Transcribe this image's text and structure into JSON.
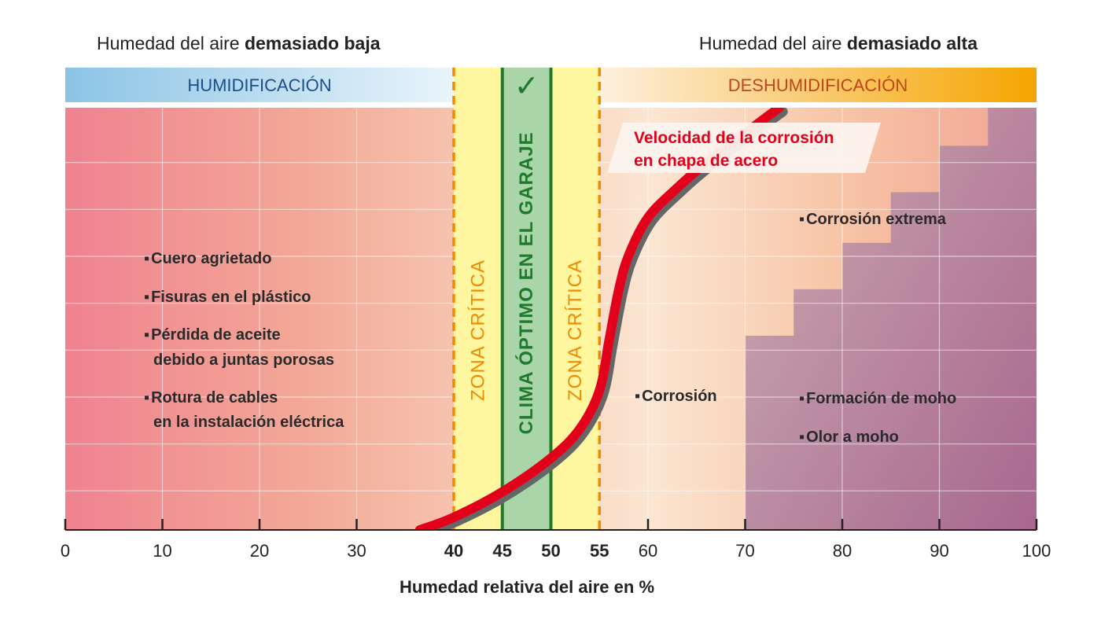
{
  "header": {
    "left_prefix": "Humedad del aire ",
    "left_bold": "demasiado baja",
    "right_prefix": "Humedad del aire ",
    "right_bold": "demasiado alta"
  },
  "bands": {
    "humidification": "HUMIDIFICACIÓN",
    "dehumidification": "DESHUMIDIFICACIÓN",
    "check_symbol": "✓"
  },
  "zones": {
    "critical_left": "ZONA CRÍTICA",
    "optimal": "CLIMA ÓPTIMO EN EL GARAJE",
    "critical_right": "ZONA CRÍTICA"
  },
  "colors": {
    "humid_band": "#8cc4e6",
    "dehumid_band": "#f5a500",
    "critical_zone": "#fff6a0",
    "optimal_zone": "#a9d5a9",
    "optimal_line": "#1f7a2e",
    "dashed_line": "#f08a00",
    "curve": "#e3001b",
    "curve_shadow": "#666666",
    "mold_area": "#a87aa0",
    "humid_label": "#1b4f86",
    "dehumid_label": "#c0461a"
  },
  "annotations": {
    "left": [
      {
        "lines": [
          "Cuero agrietado"
        ]
      },
      {
        "lines": [
          "Fisuras en el plástico"
        ]
      },
      {
        "lines": [
          "Pérdida de aceite",
          "debido a juntas porosas"
        ]
      },
      {
        "lines": [
          "Rotura de cables",
          "en la instalación eléctrica"
        ]
      }
    ],
    "corrosion": "Corrosión",
    "extreme": "Corrosión extrema",
    "mold_formation": "Formación de moho",
    "mold_smell": "Olor a moho"
  },
  "chart_data": {
    "type": "line",
    "title": "",
    "xlabel": "Humedad relativa del aire en %",
    "ylabel": "",
    "xlim": [
      0,
      100
    ],
    "grid": true,
    "x_ticks": [
      "0",
      "10",
      "20",
      "30",
      "40",
      "45",
      "50",
      "55",
      "60",
      "70",
      "80",
      "90",
      "100"
    ],
    "x_tick_values": [
      0,
      10,
      20,
      30,
      40,
      45,
      50,
      55,
      60,
      70,
      80,
      90,
      100
    ],
    "highlighted_ticks": {
      "40": "#f08a00",
      "45": "#1f7a2e",
      "50": "#1f7a2e",
      "55": "#f08a00"
    },
    "regions": [
      {
        "name": "ZONA CRÍTICA",
        "x": [
          40,
          45
        ]
      },
      {
        "name": "CLIMA ÓPTIMO EN EL GARAJE",
        "x": [
          45,
          50
        ]
      },
      {
        "name": "ZONA CRÍTICA",
        "x": [
          50,
          55
        ]
      }
    ],
    "series": [
      {
        "name": "Velocidad de la corrosión en chapa de acero",
        "name_lines": [
          "Velocidad de la corrosión",
          "en chapa de acero"
        ],
        "x": [
          36.5,
          40,
          45,
          50,
          53,
          55,
          56,
          57,
          58,
          60,
          63,
          66,
          70,
          73.5
        ],
        "y": [
          0,
          0.03,
          0.09,
          0.17,
          0.24,
          0.33,
          0.45,
          0.57,
          0.65,
          0.74,
          0.81,
          0.87,
          0.94,
          1.0
        ]
      }
    ],
    "mold_steps": [
      {
        "x": 70,
        "y": 0.46
      },
      {
        "x": 75,
        "y": 0.57
      },
      {
        "x": 80,
        "y": 0.68
      },
      {
        "x": 85,
        "y": 0.8
      },
      {
        "x": 90,
        "y": 0.91
      },
      {
        "x": 95,
        "y": 1.0
      }
    ]
  }
}
